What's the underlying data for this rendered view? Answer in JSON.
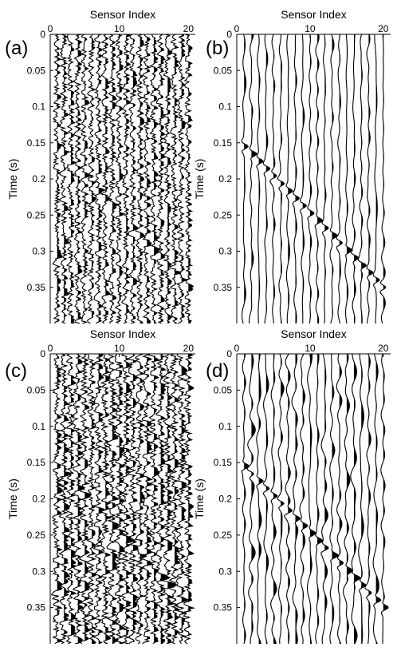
{
  "chart_data": [
    {
      "type": "seismic-wiggle",
      "panel_label": "(a)",
      "xlabel": "Sensor Index",
      "ylabel": "Time (s)",
      "xlim": [
        0,
        21
      ],
      "ylim": [
        0,
        0.4
      ],
      "x_ticks": [
        0,
        10,
        20
      ],
      "y_ticks": [
        0,
        0.05,
        0.1,
        0.15,
        0.2,
        0.25,
        0.3,
        0.35
      ],
      "traces": 20,
      "noise_level": "high",
      "noise_style": "jagged",
      "event": {
        "type": "linear",
        "start": [
          1,
          0.155
        ],
        "end": [
          20,
          0.35
        ]
      }
    },
    {
      "type": "seismic-wiggle",
      "panel_label": "(b)",
      "xlabel": "Sensor Index",
      "ylabel": "Time (s)",
      "xlim": [
        0,
        21
      ],
      "ylim": [
        0,
        0.4
      ],
      "x_ticks": [
        0,
        10,
        20
      ],
      "y_ticks": [
        0,
        0.05,
        0.1,
        0.15,
        0.2,
        0.25,
        0.3,
        0.35
      ],
      "traces": 20,
      "noise_level": "low",
      "noise_style": "smooth",
      "event": {
        "type": "linear",
        "start": [
          1,
          0.155
        ],
        "end": [
          20,
          0.35
        ]
      }
    },
    {
      "type": "seismic-wiggle",
      "panel_label": "(c)",
      "xlabel": "Sensor Index",
      "ylabel": "Time (s)",
      "xlim": [
        0,
        21
      ],
      "ylim": [
        0,
        0.4
      ],
      "x_ticks": [
        0,
        10,
        20
      ],
      "y_ticks": [
        0,
        0.05,
        0.1,
        0.15,
        0.2,
        0.25,
        0.3,
        0.35
      ],
      "traces": 20,
      "noise_level": "very high",
      "noise_style": "jagged",
      "event": {
        "type": "linear",
        "start": [
          1,
          0.155
        ],
        "end": [
          20,
          0.35
        ]
      }
    },
    {
      "type": "seismic-wiggle",
      "panel_label": "(d)",
      "xlabel": "Sensor Index",
      "ylabel": "Time (s)",
      "xlim": [
        0,
        21
      ],
      "ylim": [
        0,
        0.4
      ],
      "x_ticks": [
        0,
        10,
        20
      ],
      "y_ticks": [
        0,
        0.05,
        0.1,
        0.15,
        0.2,
        0.25,
        0.3,
        0.35
      ],
      "traces": 20,
      "noise_level": "medium",
      "noise_style": "smooth",
      "event": {
        "type": "linear",
        "start": [
          1,
          0.155
        ],
        "end": [
          20,
          0.35
        ]
      }
    }
  ]
}
